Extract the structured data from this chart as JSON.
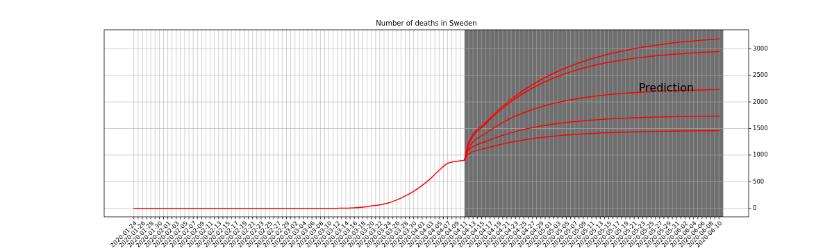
{
  "chart_data": {
    "type": "line",
    "title": "Number of deaths in Sweden",
    "grid": true,
    "line_style": "solid",
    "marker": "none",
    "xlim": [
      "2020-01-17",
      "2020-06-17"
    ],
    "ylim": [
      -160,
      3355
    ],
    "yticks": [
      0,
      500,
      1000,
      1500,
      2000,
      2500,
      3000
    ],
    "bands": [
      {
        "axis": "x",
        "from": "2020-04-11",
        "to": "2020-06-11",
        "label": "Prediction",
        "color": "#6e6e6e"
      }
    ],
    "series": [
      {
        "color": "#ff0000",
        "x": [
          "2020-01-24",
          "2020-03-10",
          "2020-03-12",
          "2020-03-14",
          "2020-03-16",
          "2020-03-18",
          "2020-03-20",
          "2020-03-22",
          "2020-03-24",
          "2020-03-26",
          "2020-03-28",
          "2020-03-30",
          "2020-04-01",
          "2020-04-03",
          "2020-04-05",
          "2020-04-07",
          "2020-04-08",
          "2020-04-09",
          "2020-04-10",
          "2020-04-11"
        ],
        "values": [
          0,
          0,
          1,
          3,
          8,
          22,
          45,
          66,
          100,
          158,
          232,
          320,
          430,
          561,
          715,
          846,
          868,
          882,
          893,
          904
        ]
      },
      {
        "color": "#ff0000",
        "x": [
          "2020-04-11",
          "2020-04-12",
          "2020-04-16",
          "2020-04-20",
          "2020-04-25",
          "2020-04-30",
          "2020-05-06",
          "2020-05-12",
          "2020-05-20",
          "2020-05-28",
          "2020-06-03",
          "2020-06-10"
        ],
        "values": [
          904,
          1244,
          1614,
          1919,
          2222,
          2457,
          2674,
          2834,
          2983,
          3085,
          3139,
          3184
        ]
      },
      {
        "color": "#ff0000",
        "x": [
          "2020-04-11",
          "2020-04-12",
          "2020-04-16",
          "2020-04-20",
          "2020-04-25",
          "2020-04-30",
          "2020-05-06",
          "2020-05-12",
          "2020-05-20",
          "2020-05-28",
          "2020-06-03",
          "2020-06-10"
        ],
        "values": [
          904,
          1209,
          1585,
          1881,
          2167,
          2379,
          2563,
          2694,
          2808,
          2880,
          2916,
          2944
        ]
      },
      {
        "color": "#ff0000",
        "x": [
          "2020-04-11",
          "2020-04-12",
          "2020-04-16",
          "2020-04-20",
          "2020-04-25",
          "2020-04-30",
          "2020-05-06",
          "2020-05-12",
          "2020-05-20",
          "2020-05-28",
          "2020-06-03",
          "2020-06-10"
        ],
        "values": [
          904,
          1144,
          1411,
          1613,
          1799,
          1930,
          2039,
          2111,
          2169,
          2204,
          2219,
          2231
        ]
      },
      {
        "color": "#ff0000",
        "x": [
          "2020-04-11",
          "2020-04-12",
          "2020-04-16",
          "2020-04-20",
          "2020-04-25",
          "2020-04-30",
          "2020-05-06",
          "2020-05-12",
          "2020-05-20",
          "2020-05-28",
          "2020-06-03",
          "2020-06-10"
        ],
        "values": [
          904,
          1100,
          1255,
          1373,
          1482,
          1559,
          1622,
          1664,
          1698,
          1718,
          1727,
          1734
        ]
      },
      {
        "color": "#ff0000",
        "x": [
          "2020-04-11",
          "2020-04-12",
          "2020-04-16",
          "2020-04-20",
          "2020-04-25",
          "2020-04-30",
          "2020-05-06",
          "2020-05-12",
          "2020-05-20",
          "2020-05-28",
          "2020-06-03",
          "2020-06-10"
        ],
        "values": [
          904,
          1023,
          1130,
          1211,
          1286,
          1339,
          1382,
          1411,
          1435,
          1448,
          1455,
          1459
        ]
      }
    ],
    "xticks": [
      "2020-01-24",
      {
        "value": "2020-01-25",
        "label": null
      },
      "2020-01-26",
      {
        "value": "2020-01-27",
        "label": null
      },
      "2020-01-28",
      {
        "value": "2020-01-29",
        "label": null
      },
      "2020-01-30",
      {
        "value": "2020-01-31",
        "label": null
      },
      "2020-02-01",
      {
        "value": "2020-02-02",
        "label": null
      },
      "2020-02-03",
      {
        "value": "2020-02-04",
        "label": null
      },
      "2020-02-05",
      {
        "value": "2020-02-06",
        "label": null
      },
      "2020-02-07",
      {
        "value": "2020-02-08",
        "label": null
      },
      "2020-02-09",
      {
        "value": "2020-02-10",
        "label": null
      },
      "2020-02-11",
      {
        "value": "2020-02-12",
        "label": null
      },
      "2020-02-13",
      {
        "value": "2020-02-14",
        "label": null
      },
      "2020-02-15",
      {
        "value": "2020-02-16",
        "label": null
      },
      "2020-02-17",
      {
        "value": "2020-02-18",
        "label": null
      },
      "2020-02-19",
      {
        "value": "2020-02-20",
        "label": null
      },
      "2020-02-21",
      {
        "value": "2020-02-22",
        "label": null
      },
      "2020-02-23",
      {
        "value": "2020-02-24",
        "label": null
      },
      "2020-02-25",
      {
        "value": "2020-02-26",
        "label": null
      },
      "2020-02-27",
      {
        "value": "2020-02-28",
        "label": null
      },
      "2020-02-29",
      {
        "value": "2020-03-01",
        "label": null
      },
      "2020-03-02",
      {
        "value": "2020-03-03",
        "label": null
      },
      "2020-03-04",
      {
        "value": "2020-03-05",
        "label": null
      },
      "2020-03-06",
      {
        "value": "2020-03-07",
        "label": null
      },
      "2020-03-08",
      {
        "value": "2020-03-09",
        "label": null
      },
      "2020-03-10",
      {
        "value": "2020-03-11",
        "label": null
      },
      "2020-03-12",
      {
        "value": "2020-03-13",
        "label": null
      },
      "2020-03-14",
      {
        "value": "2020-03-15",
        "label": null
      },
      "2020-03-16",
      {
        "value": "2020-03-17",
        "label": null
      },
      "2020-03-18",
      {
        "value": "2020-03-19",
        "label": null
      },
      "2020-03-20",
      {
        "value": "2020-03-21",
        "label": null
      },
      "2020-03-22",
      {
        "value": "2020-03-23",
        "label": null
      },
      "2020-03-24",
      {
        "value": "2020-03-25",
        "label": null
      },
      "2020-03-26",
      {
        "value": "2020-03-27",
        "label": null
      },
      "2020-03-28",
      {
        "value": "2020-03-29",
        "label": null
      },
      "2020-03-30",
      {
        "value": "2020-03-31",
        "label": null
      },
      "2020-04-01",
      {
        "value": "2020-04-02",
        "label": null
      },
      "2020-04-03",
      {
        "value": "2020-04-04",
        "label": null
      },
      "2020-04-05",
      {
        "value": "2020-04-06",
        "label": null
      },
      "2020-04-07",
      {
        "value": "2020-04-08",
        "label": null
      },
      "2020-04-09",
      {
        "value": "2020-04-10",
        "label": null
      },
      "2020-04-11",
      {
        "value": "2020-04-12",
        "label": null
      },
      "2020-04-13",
      {
        "value": "2020-04-14",
        "label": null
      },
      "2020-04-15",
      {
        "value": "2020-04-16",
        "label": null
      },
      "2020-04-17",
      {
        "value": "2020-04-18",
        "label": null
      },
      "2020-04-19",
      {
        "value": "2020-04-20",
        "label": null
      },
      "2020-04-21",
      {
        "value": "2020-04-22",
        "label": null
      },
      "2020-04-23",
      {
        "value": "2020-04-24",
        "label": null
      },
      "2020-04-25",
      {
        "value": "2020-04-26",
        "label": null
      },
      "2020-04-27",
      {
        "value": "2020-04-28",
        "label": null
      },
      "2020-04-29",
      {
        "value": "2020-04-30",
        "label": null
      },
      "2020-05-01",
      {
        "value": "2020-05-02",
        "label": null
      },
      "2020-05-03",
      {
        "value": "2020-05-04",
        "label": null
      },
      "2020-05-05",
      {
        "value": "2020-05-06",
        "label": null
      },
      "2020-05-07",
      {
        "value": "2020-05-08",
        "label": null
      },
      "2020-05-09",
      {
        "value": "2020-05-10",
        "label": null
      },
      "2020-05-11",
      {
        "value": "2020-05-12",
        "label": null
      },
      "2020-05-13",
      {
        "value": "2020-05-14",
        "label": null
      },
      "2020-05-15",
      {
        "value": "2020-05-16",
        "label": null
      },
      "2020-05-17",
      {
        "value": "2020-05-18",
        "label": null
      },
      "2020-05-19",
      {
        "value": "2020-05-20",
        "label": null
      },
      "2020-05-21",
      {
        "value": "2020-05-22",
        "label": null
      },
      "2020-05-23",
      {
        "value": "2020-05-24",
        "label": null
      },
      "2020-05-25",
      {
        "value": "2020-05-26",
        "label": null
      },
      "2020-05-27",
      {
        "value": "2020-05-28",
        "label": null
      },
      "2020-05-29",
      {
        "value": "2020-05-30",
        "label": null
      },
      "2020-05-31",
      {
        "value": "2020-06-01",
        "label": null
      },
      "2020-06-02",
      {
        "value": "2020-06-03",
        "label": null
      },
      "2020-06-04",
      {
        "value": "2020-06-05",
        "label": null
      },
      "2020-06-06",
      {
        "value": "2020-06-07",
        "label": null
      },
      "2020-06-08",
      {
        "value": "2020-06-09",
        "label": null
      },
      "2020-06-10"
    ]
  }
}
